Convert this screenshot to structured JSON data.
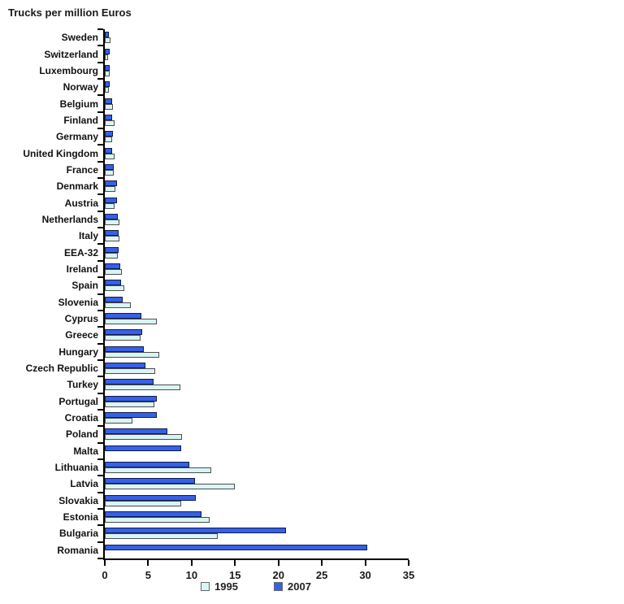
{
  "chart_data": {
    "type": "bar",
    "orientation": "horizontal",
    "title": "Trucks per million Euros",
    "xlabel": "",
    "ylabel": "",
    "xlim": [
      0,
      35
    ],
    "xticks": [
      0,
      5,
      10,
      15,
      20,
      25,
      30,
      35
    ],
    "grid": false,
    "legend_position": "bottom-center",
    "bar_order_top_to_bottom": [
      "2007",
      "1995"
    ],
    "categories": [
      "Sweden",
      "Switzerland",
      "Luxembourg",
      "Norway",
      "Belgium",
      "Finland",
      "Germany",
      "United Kingdom",
      "France",
      "Denmark",
      "Austria",
      "Netherlands",
      "Italy",
      "EEA-32",
      "Ireland",
      "Spain",
      "Slovenia",
      "Cyprus",
      "Greece",
      "Hungary",
      "Czech Republic",
      "Turkey",
      "Portugal",
      "Croatia",
      "Poland",
      "Malta",
      "Lithuania",
      "Latvia",
      "Slovakia",
      "Estonia",
      "Bulgaria",
      "Romania"
    ],
    "series": [
      {
        "name": "1995",
        "color": "#d9f4f4",
        "border_color": "#4d4d4d",
        "values": [
          0.7,
          0.4,
          0.6,
          0.5,
          0.9,
          1.1,
          0.8,
          1.1,
          1.0,
          1.2,
          1.1,
          1.7,
          1.7,
          1.5,
          2.0,
          2.2,
          3.0,
          6.0,
          4.1,
          6.3,
          5.8,
          8.7,
          5.7,
          3.2,
          8.9,
          null,
          12.3,
          15.0,
          8.8,
          12.1,
          13.0,
          null
        ]
      },
      {
        "name": "2007",
        "color": "#3760e8",
        "border_color": "#0d1b4b",
        "values": [
          0.5,
          0.6,
          0.6,
          0.6,
          0.8,
          0.8,
          0.9,
          0.8,
          1.0,
          1.4,
          1.4,
          1.5,
          1.6,
          1.6,
          1.8,
          1.9,
          2.1,
          4.2,
          4.3,
          4.5,
          4.7,
          5.6,
          6.0,
          6.0,
          7.2,
          8.8,
          9.7,
          10.4,
          10.5,
          11.1,
          20.9,
          30.2
        ]
      }
    ],
    "legend": [
      {
        "label": "1995",
        "color": "#d9f4f4"
      },
      {
        "label": "2007",
        "color": "#3760e8"
      }
    ]
  }
}
